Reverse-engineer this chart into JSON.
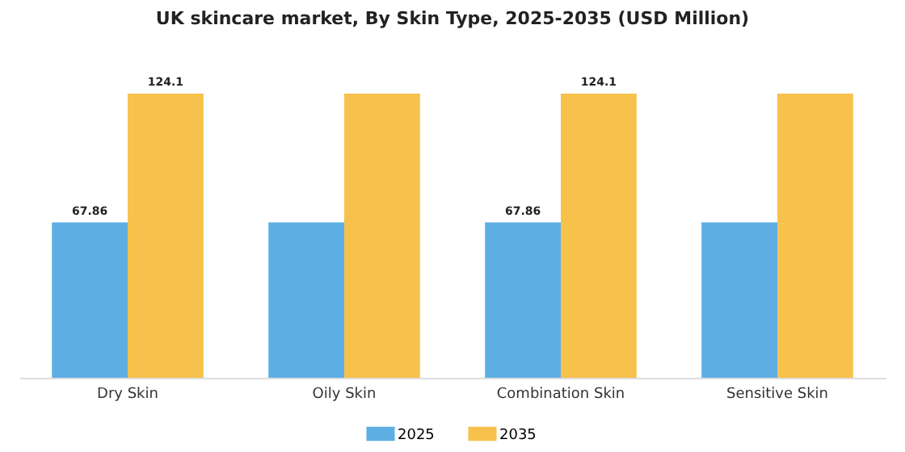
{
  "chart_data": {
    "type": "bar",
    "title": "UK skincare market, By Skin Type, 2025-2035 (USD Million)",
    "categories": [
      "Dry Skin",
      "Oily Skin",
      "Combination Skin",
      "Sensitive Skin"
    ],
    "series": [
      {
        "name": "2025",
        "color": "#5dafe3",
        "values": [
          67.86,
          67.86,
          67.86,
          67.86
        ],
        "value_labels": [
          "67.86",
          null,
          "67.86",
          null
        ]
      },
      {
        "name": "2035",
        "color": "#f6c24c",
        "values": [
          124.1,
          124.1,
          124.1,
          124.1
        ],
        "value_labels": [
          "124.1",
          null,
          "124.1",
          null
        ]
      }
    ],
    "legend": "bottom",
    "tick_labels": "x"
  }
}
